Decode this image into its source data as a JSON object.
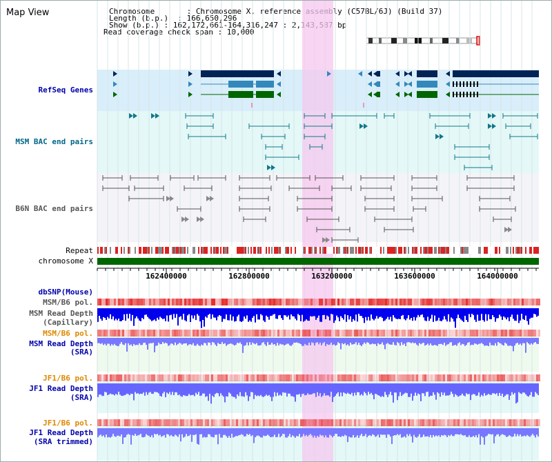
{
  "title": "Map View",
  "info": {
    "chromosome": "Chromosome       : Chromosome X, reference assembly (C57BL/6J) (Build 37)",
    "length": "Length (b.p.)  : 166,650,296",
    "show": "Show (b.p.) : 162,172,661-164,316,247 : 2,143,587 bp",
    "span": "Read coverage check span : 10,000"
  },
  "tracks": {
    "refseq": "RefSeq Genes",
    "msm_bac": "MSM BAC end pairs",
    "b6n_bac": "B6N BAC end pairs",
    "repeat": "Repeat",
    "chromosome": "chromosome X",
    "dbsnp": "dbSNP(Mouse)",
    "msm_b6_pol_1": "MSM/B6 pol.",
    "msm_depth_cap_1": "MSM Read Depth",
    "msm_depth_cap_2": "(Capillary)",
    "msm_b6_pol_2": "MSM/B6 pol.",
    "msm_depth_sra_1": "MSM Read Depth",
    "msm_depth_sra_2": "(SRA)",
    "jf1_b6_pol_1": "JF1/B6 pol.",
    "jf1_depth_sra_1": "JF1 Read Depth",
    "jf1_depth_sra_2": "(SRA)",
    "jf1_b6_pol_2": "JF1/B6 pol.",
    "jf1_depth_trim_1": "JF1 Read Depth",
    "jf1_depth_trim_2": "(SRA trimmed)"
  },
  "axis_ticks": [
    "162400000",
    "162800000",
    "163200000",
    "163600000",
    "164000000"
  ],
  "colors": {
    "blue_label": "#0000aa",
    "teal_label": "#006688",
    "gray_label": "#555555",
    "orange_label": "#dd8800",
    "highlight": "#f5c8ef",
    "refseq_bg": "#d8eefa",
    "msm_bg": "#e4f8f8",
    "b6n_bg": "#f4f4f8",
    "chromosome_green": "#006600",
    "depth_blue": "#0000ee",
    "depth_light_blue": "#7777ff"
  }
}
